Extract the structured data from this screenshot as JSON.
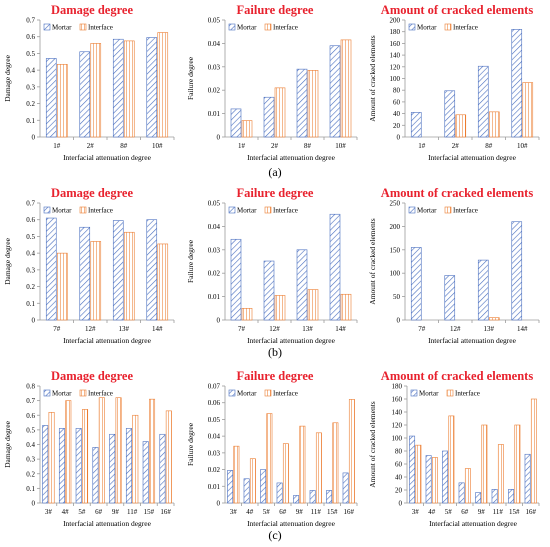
{
  "figure": {
    "colors": {
      "title": "#e8222e",
      "mortar": "#4a6fc0",
      "interface": "#ec7d31",
      "axis": "#9b9b9b"
    },
    "panel_labels": [
      "(a)",
      "(b)",
      "(c)"
    ]
  },
  "chart_data": [
    {
      "type": "bar",
      "row": 0,
      "col": 0,
      "title": "Damage degree",
      "xlabel": "Interfacial attenuation degree",
      "ylabel": "Damage degree",
      "categories": [
        "1#",
        "2#",
        "8#",
        "10#"
      ],
      "ylim": [
        0,
        0.7
      ],
      "yticks": [
        "0",
        "0.1",
        "0.2",
        "0.3",
        "0.4",
        "0.5",
        "0.6",
        "0.7"
      ],
      "legend": [
        "Mortar",
        "Interface"
      ],
      "series": [
        {
          "name": "Mortar",
          "values": [
            0.47,
            0.51,
            0.585,
            0.595
          ]
        },
        {
          "name": "Interface",
          "values": [
            0.435,
            0.56,
            0.575,
            0.625
          ]
        }
      ]
    },
    {
      "type": "bar",
      "row": 0,
      "col": 1,
      "title": "Failure degree",
      "xlabel": "Interfacial attenuation degree",
      "ylabel": "Failure degree",
      "categories": [
        "1#",
        "2#",
        "8#",
        "10#"
      ],
      "ylim": [
        0,
        0.05
      ],
      "yticks": [
        "0",
        "0.01",
        "0.02",
        "0.03",
        "0.04",
        "0.05"
      ],
      "legend": [
        "Mortar",
        "Interface"
      ],
      "series": [
        {
          "name": "Mortar",
          "values": [
            0.012,
            0.017,
            0.029,
            0.039
          ]
        },
        {
          "name": "Interface",
          "values": [
            0.007,
            0.021,
            0.0285,
            0.0415
          ]
        }
      ]
    },
    {
      "type": "bar",
      "row": 0,
      "col": 2,
      "title": "Amount of cracked elements",
      "xlabel": "Interfacial attenuation degree",
      "ylabel": "Amount of cracked elements",
      "categories": [
        "1#",
        "2#",
        "8#",
        "10#"
      ],
      "ylim": [
        0,
        200
      ],
      "yticks": [
        "0",
        "20",
        "40",
        "60",
        "80",
        "100",
        "120",
        "140",
        "160",
        "180",
        "200"
      ],
      "legend": [
        "Mortar",
        "Interface"
      ],
      "series": [
        {
          "name": "Mortar",
          "values": [
            42,
            79,
            121,
            184
          ]
        },
        {
          "name": "Interface",
          "values": [
            0,
            38,
            43,
            93
          ]
        }
      ]
    },
    {
      "type": "bar",
      "row": 1,
      "col": 0,
      "title": "Damage degree",
      "xlabel": "Interfacial attenuation degree",
      "ylabel": "Damage degree",
      "categories": [
        "7#",
        "12#",
        "13#",
        "14#"
      ],
      "ylim": [
        0,
        0.7
      ],
      "yticks": [
        "0",
        "0.1",
        "0.2",
        "0.3",
        "0.4",
        "0.5",
        "0.6",
        "0.7"
      ],
      "legend": [
        "Mortar",
        "Interface"
      ],
      "series": [
        {
          "name": "Mortar",
          "values": [
            0.61,
            0.555,
            0.595,
            0.6
          ]
        },
        {
          "name": "Interface",
          "values": [
            0.4,
            0.47,
            0.525,
            0.455
          ]
        }
      ]
    },
    {
      "type": "bar",
      "row": 1,
      "col": 1,
      "title": "Failure degree",
      "xlabel": "Interfacial attenuation degree",
      "ylabel": "Failure degree",
      "categories": [
        "7#",
        "12#",
        "13#",
        "14#"
      ],
      "ylim": [
        0,
        0.05
      ],
      "yticks": [
        "0",
        "0.01",
        "0.02",
        "0.03",
        "0.04",
        "0.05"
      ],
      "legend": [
        "Mortar",
        "Interface"
      ],
      "series": [
        {
          "name": "Mortar",
          "values": [
            0.0345,
            0.0252,
            0.03,
            0.0452
          ]
        },
        {
          "name": "Interface",
          "values": [
            0.005,
            0.0105,
            0.013,
            0.011
          ]
        }
      ]
    },
    {
      "type": "bar",
      "row": 1,
      "col": 2,
      "title": "Amount of cracked elements",
      "xlabel": "Interfacial attenuation degree",
      "ylabel": "Amount of cracked elements",
      "categories": [
        "7#",
        "12#",
        "13#",
        "14#"
      ],
      "ylim": [
        0,
        250
      ],
      "yticks": [
        "0",
        "50",
        "100",
        "150",
        "200",
        "250"
      ],
      "legend": [
        "Mortar",
        "Interface"
      ],
      "series": [
        {
          "name": "Mortar",
          "values": [
            155,
            95,
            128,
            210
          ]
        },
        {
          "name": "Interface",
          "values": [
            0,
            0,
            5,
            0
          ]
        }
      ]
    },
    {
      "type": "bar",
      "row": 2,
      "col": 0,
      "title": "Damage degree",
      "xlabel": "Interfacial attenuation degree",
      "ylabel": "Damage degree",
      "categories": [
        "3#",
        "4#",
        "5#",
        "6#",
        "9#",
        "11#",
        "15#",
        "16#"
      ],
      "ylim": [
        0,
        0.8
      ],
      "yticks": [
        "0",
        "0.1",
        "0.2",
        "0.3",
        "0.4",
        "0.5",
        "0.6",
        "0.7",
        "0.8"
      ],
      "legend": [
        "Mortar",
        "Interface"
      ],
      "series": [
        {
          "name": "Mortar",
          "values": [
            0.53,
            0.51,
            0.51,
            0.38,
            0.47,
            0.51,
            0.42,
            0.47
          ]
        },
        {
          "name": "Interface",
          "values": [
            0.62,
            0.7,
            0.64,
            0.72,
            0.72,
            0.6,
            0.71,
            0.63
          ]
        }
      ]
    },
    {
      "type": "bar",
      "row": 2,
      "col": 1,
      "title": "Failure degree",
      "xlabel": "Interfacial attenuation degree",
      "ylabel": "Failure degree",
      "categories": [
        "3#",
        "4#",
        "5#",
        "6#",
        "9#",
        "11#",
        "15#",
        "16#"
      ],
      "ylim": [
        0,
        0.07
      ],
      "yticks": [
        "0",
        "0.01",
        "0.02",
        "0.03",
        "0.04",
        "0.05",
        "0.06",
        "0.07"
      ],
      "legend": [
        "Mortar",
        "Interface"
      ],
      "series": [
        {
          "name": "Mortar",
          "values": [
            0.0195,
            0.0145,
            0.02,
            0.012,
            0.0045,
            0.0075,
            0.0075,
            0.018
          ]
        },
        {
          "name": "Interface",
          "values": [
            0.034,
            0.0265,
            0.0535,
            0.0355,
            0.046,
            0.042,
            0.048,
            0.062
          ]
        }
      ]
    },
    {
      "type": "bar",
      "row": 2,
      "col": 2,
      "title": "Amount of cracked elements",
      "xlabel": "Interfacial attenuation degree",
      "ylabel": "Amount of cracked elements",
      "categories": [
        "3#",
        "4#",
        "5#",
        "6#",
        "9#",
        "11#",
        "15#",
        "16#"
      ],
      "ylim": [
        0,
        180
      ],
      "yticks": [
        "0",
        "20",
        "40",
        "60",
        "80",
        "100",
        "120",
        "140",
        "160",
        "180"
      ],
      "legend": [
        "Mortar",
        "Interface"
      ],
      "series": [
        {
          "name": "Mortar",
          "values": [
            103,
            73,
            80,
            31,
            16,
            21,
            21,
            75
          ]
        },
        {
          "name": "Interface",
          "values": [
            89,
            70,
            134,
            53,
            120,
            90,
            120,
            160
          ]
        }
      ]
    }
  ]
}
